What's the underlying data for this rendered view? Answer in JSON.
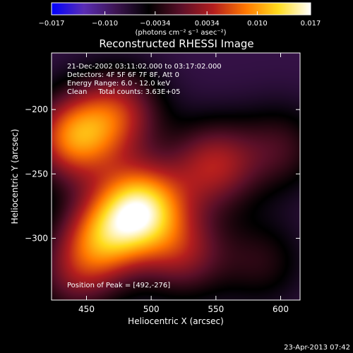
{
  "chart_data": {
    "type": "heatmap",
    "title": "Reconstructed RHESSI Image",
    "xlabel": "Heliocentric X (arcsec)",
    "ylabel": "Heliocentric Y (arcsec)",
    "xlim": [
      423,
      615
    ],
    "ylim": [
      -348,
      -156
    ],
    "x_ticks": [
      {
        "value": 450,
        "label": "450"
      },
      {
        "value": 500,
        "label": "500"
      },
      {
        "value": 550,
        "label": "550"
      },
      {
        "value": 600,
        "label": "600"
      }
    ],
    "y_ticks": [
      {
        "value": -200,
        "label": "−200"
      },
      {
        "value": -250,
        "label": "−250"
      },
      {
        "value": -300,
        "label": "−300"
      }
    ],
    "colorbar": {
      "range": [
        -0.017,
        0.017
      ],
      "ticks": [
        {
          "value": -0.017,
          "label": "−0.017"
        },
        {
          "value": -0.01,
          "label": "−0.010"
        },
        {
          "value": -0.0034,
          "label": "−0.0034"
        },
        {
          "value": 0.0034,
          "label": "0.0034"
        },
        {
          "value": 0.01,
          "label": "0.010"
        },
        {
          "value": 0.017,
          "label": "0.017"
        }
      ],
      "units": "(photons cm⁻² s⁻¹ asec⁻²)",
      "colors": [
        "#0000ff",
        "#5a2db4",
        "#3c1450",
        "#000000",
        "#5a0f28",
        "#b41e1e",
        "#ff7800",
        "#ffdc1e",
        "#ffffff"
      ]
    },
    "annotations": [
      "21-Dec-2002 03:11:02.000 to 03:17:02.000",
      "Detectors: 4F 5F 6F 7F 8F, Att 0",
      "Energy Range: 6.0 - 12.0 keV",
      "Clean     Total counts: 3.63E+05"
    ],
    "peak_label": "Position of Peak = [492,-276]",
    "peak": [
      492,
      -276
    ],
    "sources": [
      {
        "x": 492,
        "y": -276,
        "flux": 0.017
      },
      {
        "x": 440,
        "y": -222,
        "flux": 0.0125
      },
      {
        "x": 475,
        "y": -202,
        "flux": 0.0075
      },
      {
        "x": 462,
        "y": -300,
        "flux": 0.01
      },
      {
        "x": 548,
        "y": -243,
        "flux": 0.008
      },
      {
        "x": 600,
        "y": -230,
        "flux": 0.003
      },
      {
        "x": 525,
        "y": -312,
        "flux": 0.006
      },
      {
        "x": 440,
        "y": -330,
        "flux": 0.004
      },
      {
        "x": 585,
        "y": -318,
        "flux": 0.002
      }
    ],
    "background_flux": -0.008
  },
  "footer": {
    "timestamp": "23-Apr-2013 07:42"
  }
}
